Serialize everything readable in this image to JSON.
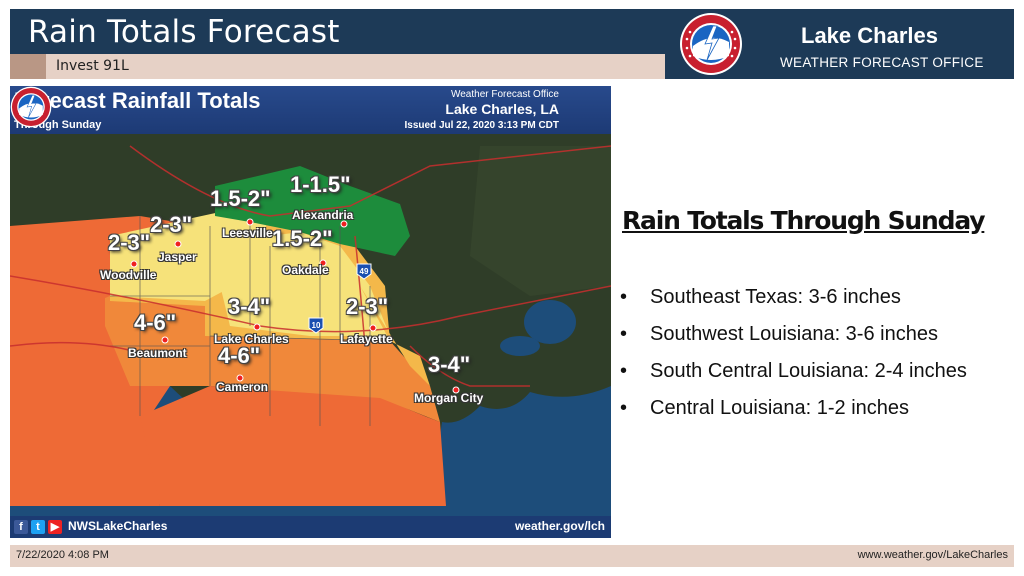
{
  "header": {
    "title": "Rain Totals Forecast",
    "subtitle": "Invest 91L",
    "office_name": "Lake Charles",
    "office_sub": "WEATHER FORECAST OFFICE",
    "logo_icon": "nws-logo-icon"
  },
  "map": {
    "title": "Forecast Rainfall Totals",
    "through": "Through Sunday",
    "wfo_label": "Weather Forecast Office",
    "wfo_city": "Lake Charles, LA",
    "issued": "Issued Jul 22, 2020 3:13 PM CDT",
    "handle": "NWSLakeCharles",
    "site": "weather.gov/lch",
    "interstate_10": "10",
    "interstate_49": "49",
    "range_labels": [
      "1-1.5\"",
      "1.5-2\"",
      "2-3\"",
      "2-3\"",
      "1.5-2\"",
      "4-6\"",
      "3-4\"",
      "2-3\"",
      "4-6\"",
      "3-4\""
    ],
    "cities": [
      "Alexandria",
      "Leesville",
      "Jasper",
      "Woodville",
      "Oakdale",
      "Beaumont",
      "Lake Charles",
      "Lafayette",
      "Cameron",
      "Morgan City"
    ],
    "colors": {
      "water": "#1d4d7a",
      "land": "#2c3a24",
      "green_zone": "#1d8c3c",
      "yellow_zone": "#f6e27a",
      "light_orange_zone": "#f4b84a",
      "orange_zone": "#f0883a",
      "red_orange_zone": "#ee6a36"
    }
  },
  "panel": {
    "heading": "Rain Totals Through Sunday",
    "bullets": [
      "Southeast Texas: 3-6 inches",
      "Southwest Louisiana: 3-6 inches",
      "South Central Louisiana: 2-4 inches",
      "Central Louisiana: 1-2 inches"
    ]
  },
  "footer": {
    "date": "7/22/2020 4:08 PM",
    "url": "www.weather.gov/LakeCharles"
  }
}
